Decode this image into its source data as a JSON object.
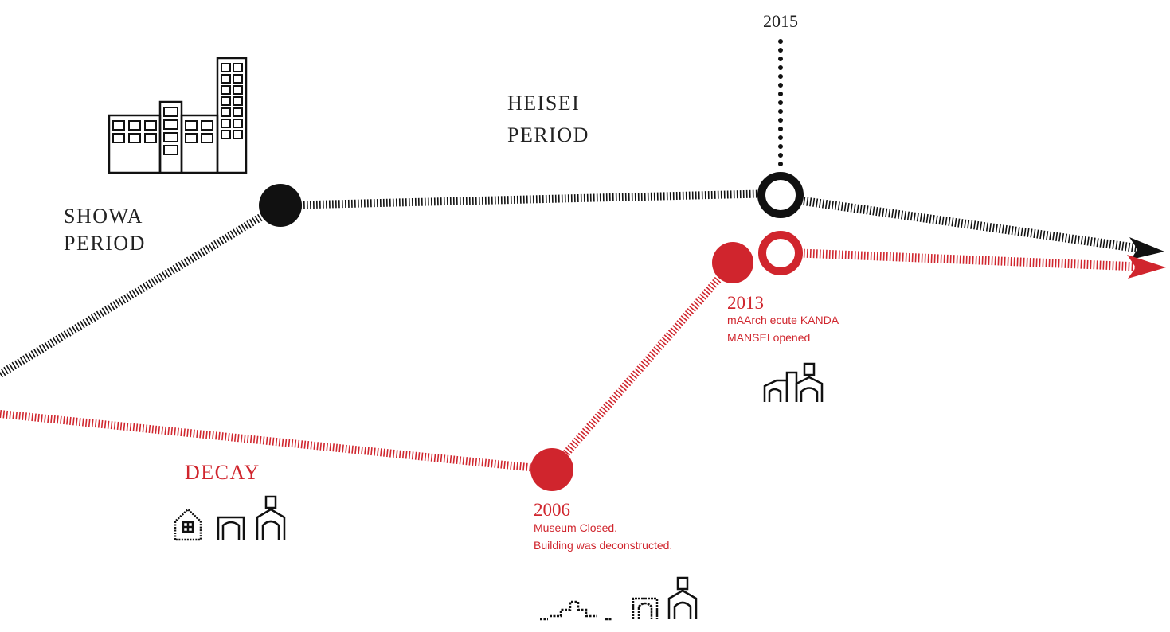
{
  "top_year": "2015",
  "heisei": [
    "HEISEI",
    "PERIOD"
  ],
  "showa": [
    "SHOWA",
    "PERIOD"
  ],
  "decay": "DECAY",
  "events": [
    {
      "year": "2006",
      "lines": [
        "Museum Closed.",
        "Building was deconstructed."
      ]
    },
    {
      "year": "2013",
      "lines": [
        "mAArch ecute KANDA",
        "MANSEI opened"
      ]
    }
  ]
}
